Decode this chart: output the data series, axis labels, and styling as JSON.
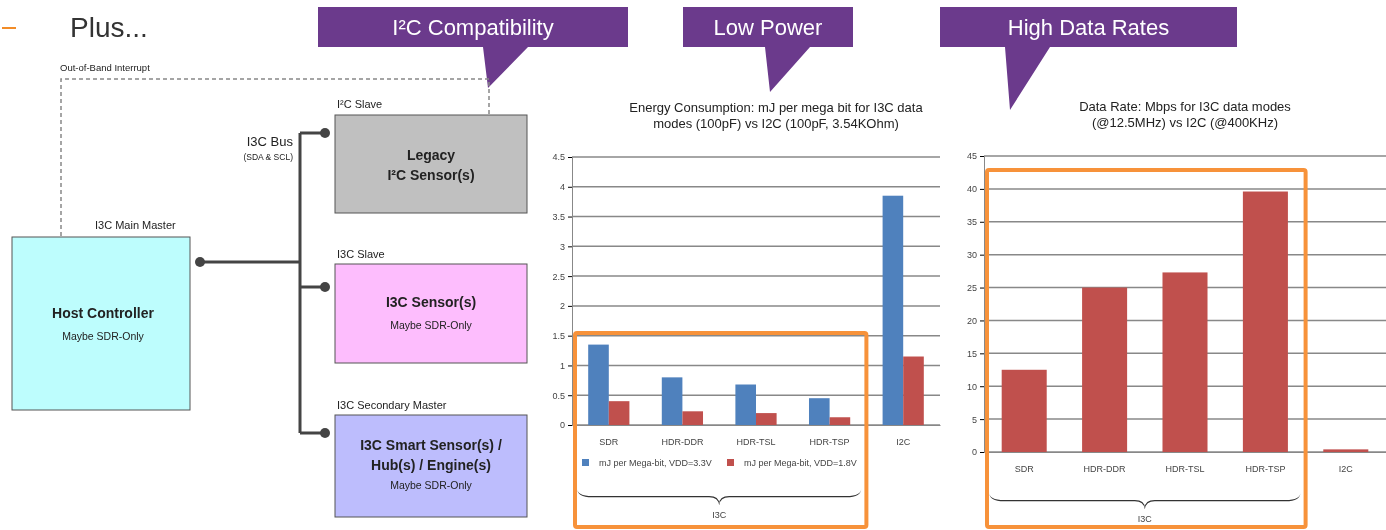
{
  "chart_data": [
    {
      "type": "other",
      "title": "Plus...",
      "annotations": [
        "I²C Compatibility",
        "Low Power",
        "High Data Rates",
        "Out-of-Band Interrupt",
        "I3C Main Master",
        "Host Controller",
        "Maybe SDR-Only",
        "I3C Bus",
        "(SDA & SCL)",
        "I²C Slave",
        "Legacy",
        "I²C Sensor(s)",
        "I3C Slave",
        "I3C Sensor(s)",
        "Maybe SDR-Only",
        "I3C Secondary Master",
        "I3C Smart Sensor(s) /",
        "Hub(s) / Engine(s)",
        "Maybe SDR-Only"
      ]
    },
    {
      "type": "bar",
      "title": "Energy Consumption: mJ per mega bit for I3C data modes (100pF) vs I2C (100pF, 3.54KOhm)",
      "categories": [
        "SDR",
        "HDR-DDR",
        "HDR-TSL",
        "HDR-TSP",
        "I2C"
      ],
      "series": [
        {
          "name": "mJ per Mega-bit, VDD=3.3V",
          "color": "#4f81bd",
          "values": [
            1.35,
            0.8,
            0.68,
            0.45,
            3.85
          ]
        },
        {
          "name": "mJ per Mega-bit, VDD=1.8V",
          "color": "#c0504d",
          "values": [
            0.4,
            0.23,
            0.2,
            0.13,
            1.15
          ]
        }
      ],
      "ylim": [
        0,
        4.5
      ],
      "yticks": [
        0,
        0.5,
        1,
        1.5,
        2,
        2.5,
        3,
        3.5,
        4,
        4.5
      ],
      "grid": "y",
      "legend": "bottom",
      "annotations": [
        "I3C"
      ]
    },
    {
      "type": "bar",
      "title": "Data Rate: Mbps for I3C data modes (@12.5MHz) vs I2C (@400KHz)",
      "categories": [
        "SDR",
        "HDR-DDR",
        "HDR-TSL",
        "HDR-TSP",
        "I2C"
      ],
      "series": [
        {
          "color": "#c0504d",
          "values": [
            12.5,
            25,
            27.3,
            39.6,
            0.4
          ]
        }
      ],
      "ylim": [
        0,
        45
      ],
      "yticks": [
        0,
        5,
        10,
        15,
        20,
        25,
        30,
        35,
        40,
        45
      ],
      "grid": "y",
      "annotations": [
        "I3C"
      ]
    }
  ]
}
